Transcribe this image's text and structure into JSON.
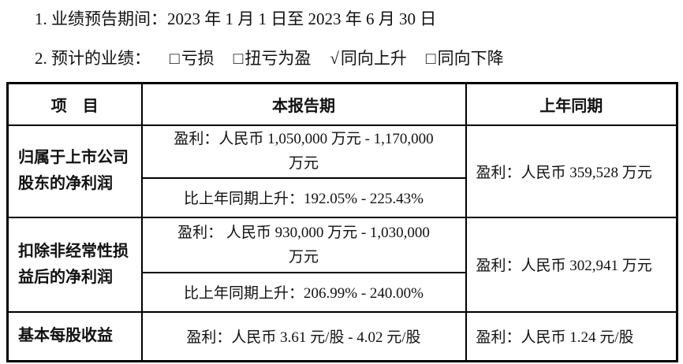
{
  "colors": {
    "background": "#ffffff",
    "text": "#111111",
    "table_border": "#000000"
  },
  "intro": {
    "line1": "1. 业绩预告期间：2023 年 1 月 1 日至 2023 年 6 月 30 日",
    "line2_label": "2. 预计的业绩：",
    "options": [
      {
        "symbol": "□",
        "label": "亏损",
        "checked": false
      },
      {
        "symbol": "□",
        "label": "扭亏为盈",
        "checked": false
      },
      {
        "symbol": "√",
        "label": "同向上升",
        "checked": true
      },
      {
        "symbol": "□",
        "label": "同向下降",
        "checked": false
      }
    ]
  },
  "table": {
    "headers": {
      "item": "项　目",
      "current_period": "本报告期",
      "prior_period": "上年同期"
    },
    "rows": [
      {
        "item": "归属于上市公司\n股东的净利润",
        "current_profit": "盈利：人民币 1,050,000 万元 - 1,170,000\n万元",
        "yoy_change": "比上年同期上升：192.05% - 225.43%",
        "prior_profit": "盈利：人民币 359,528 万元"
      },
      {
        "item": "扣除非经常性损\n益后的净利润",
        "current_profit": "盈利： 人民币 930,000 万元 - 1,030,000\n万元",
        "yoy_change": "比上年同期上升：206.99% - 240.00%",
        "prior_profit": "盈利：人民币 302,941 万元"
      },
      {
        "item": "基本每股收益",
        "current_profit": "盈利：人民币 3.61 元/股 - 4.02 元/股",
        "prior_profit": "盈利：人民币 1.24 元/股"
      }
    ]
  }
}
